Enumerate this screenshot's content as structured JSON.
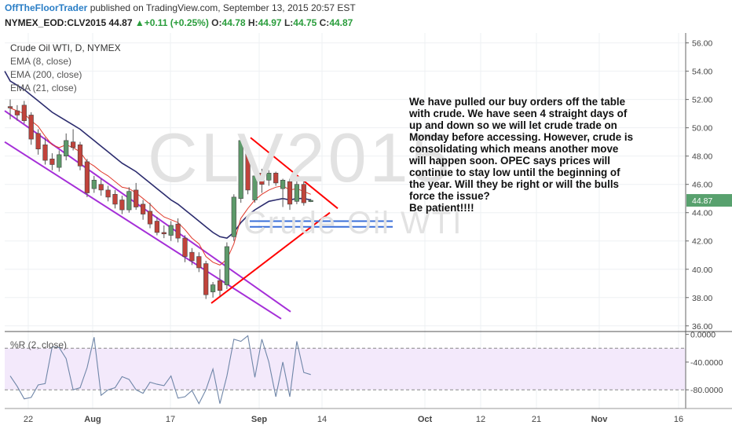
{
  "header": {
    "brand": "OffTheFloorTrader",
    "published": "published on TradingView.com, September 13, 2015 20:57 EST",
    "symbol": "NYMEX_EOD:CLV2015",
    "last": "44.87",
    "change_arrow": "▲",
    "change": "+0.11 (+0.25%)",
    "open_label": "O:",
    "open": "44.78",
    "high_label": "H:",
    "high": "44.97",
    "low_label": "L:",
    "low": "44.75",
    "close_label": "C:",
    "close": "44.87"
  },
  "legend": {
    "symbol_line": "Crude Oil WTI, D, NYMEX",
    "ema_fast": "EMA (8, close)",
    "ema_slow": "EMA (200, close)",
    "ema_mid": "EMA (21, close)"
  },
  "watermark": {
    "ticker": "CLV2015",
    "name": "Crude Oil WTI"
  },
  "note": "We have pulled our buy orders off the table with crude.  We have seen 4 straight days of up and down so we will let crude trade on Monday before accessing.  However,  crude is consolidating which means another move will happen soon.  OPEC says prices will continue to stay low until the beginning of the year.  Will they be right or will the bulls force the issue?\nBe patient!!!!",
  "price_tag": "44.87",
  "oscillator": {
    "label": "%R (2, close)"
  },
  "colors": {
    "up": "#5d9a6a",
    "down": "#c1433b",
    "ema_fast": "#e0392b",
    "ema_21": "#2c2c6e",
    "channel": "#a52fd8",
    "triangle": "#ff0000",
    "support": "#3a6fd8",
    "osc_line": "#6f86a8",
    "osc_band": "#f3e9fb",
    "price_tag": "#58a16e"
  },
  "chart_data": [
    {
      "type": "candlestick",
      "title": "Crude Oil WTI, D, NYMEX",
      "x_ticks": [
        "22",
        "Aug",
        "17",
        "Sep",
        "14",
        "Oct",
        "12",
        "21",
        "Nov",
        "16"
      ],
      "y_ticks": [
        "36.00",
        "38.00",
        "40.00",
        "42.00",
        "44.00",
        "46.00",
        "48.00",
        "50.00",
        "52.00",
        "54.00",
        "56.00"
      ],
      "ylim": [
        35.6,
        56.7
      ],
      "candles": [
        {
          "o": 51.5,
          "h": 52.0,
          "l": 50.6,
          "c": 51.4
        },
        {
          "o": 51.2,
          "h": 51.6,
          "l": 50.5,
          "c": 50.9
        },
        {
          "o": 51.6,
          "h": 51.9,
          "l": 50.3,
          "c": 50.5
        },
        {
          "o": 50.9,
          "h": 51.1,
          "l": 48.8,
          "c": 49.2
        },
        {
          "o": 49.6,
          "h": 49.9,
          "l": 48.1,
          "c": 48.5
        },
        {
          "o": 48.8,
          "h": 49.3,
          "l": 47.4,
          "c": 47.7
        },
        {
          "o": 47.8,
          "h": 48.2,
          "l": 47.0,
          "c": 47.4
        },
        {
          "o": 47.2,
          "h": 48.4,
          "l": 46.9,
          "c": 48.1
        },
        {
          "o": 48.0,
          "h": 49.6,
          "l": 47.7,
          "c": 49.1
        },
        {
          "o": 49.0,
          "h": 49.9,
          "l": 48.4,
          "c": 48.6
        },
        {
          "o": 48.8,
          "h": 49.0,
          "l": 47.0,
          "c": 47.3
        },
        {
          "o": 47.6,
          "h": 47.8,
          "l": 45.1,
          "c": 45.4
        },
        {
          "o": 45.7,
          "h": 46.6,
          "l": 45.4,
          "c": 46.3
        },
        {
          "o": 46.0,
          "h": 46.4,
          "l": 45.2,
          "c": 45.6
        },
        {
          "o": 45.6,
          "h": 45.9,
          "l": 44.8,
          "c": 45.1
        },
        {
          "o": 45.3,
          "h": 45.6,
          "l": 44.3,
          "c": 44.6
        },
        {
          "o": 44.9,
          "h": 45.2,
          "l": 43.9,
          "c": 44.2
        },
        {
          "o": 44.2,
          "h": 45.8,
          "l": 44.0,
          "c": 45.5
        },
        {
          "o": 45.6,
          "h": 46.1,
          "l": 44.2,
          "c": 44.4
        },
        {
          "o": 44.6,
          "h": 44.9,
          "l": 43.5,
          "c": 43.9
        },
        {
          "o": 44.1,
          "h": 44.7,
          "l": 42.9,
          "c": 43.2
        },
        {
          "o": 43.4,
          "h": 43.7,
          "l": 42.4,
          "c": 42.6
        },
        {
          "o": 42.6,
          "h": 43.1,
          "l": 42.2,
          "c": 42.5
        },
        {
          "o": 42.4,
          "h": 43.4,
          "l": 42.0,
          "c": 43.1
        },
        {
          "o": 43.2,
          "h": 43.6,
          "l": 41.9,
          "c": 42.2
        },
        {
          "o": 42.2,
          "h": 42.4,
          "l": 40.5,
          "c": 40.9
        },
        {
          "o": 41.2,
          "h": 41.5,
          "l": 40.3,
          "c": 40.6
        },
        {
          "o": 40.9,
          "h": 41.2,
          "l": 39.8,
          "c": 40.1
        },
        {
          "o": 40.4,
          "h": 40.6,
          "l": 37.9,
          "c": 38.2
        },
        {
          "o": 38.4,
          "h": 39.1,
          "l": 38.0,
          "c": 38.9
        },
        {
          "o": 39.2,
          "h": 40.0,
          "l": 38.1,
          "c": 38.5
        },
        {
          "o": 38.9,
          "h": 41.9,
          "l": 38.6,
          "c": 41.6
        },
        {
          "o": 42.3,
          "h": 45.3,
          "l": 42.0,
          "c": 45.1
        },
        {
          "o": 45.0,
          "h": 49.4,
          "l": 44.7,
          "c": 49.1
        },
        {
          "o": 48.2,
          "h": 48.7,
          "l": 45.3,
          "c": 45.6
        },
        {
          "o": 44.9,
          "h": 47.0,
          "l": 44.7,
          "c": 46.6
        },
        {
          "o": 46.8,
          "h": 47.1,
          "l": 45.4,
          "c": 46.0
        },
        {
          "o": 46.3,
          "h": 47.0,
          "l": 45.9,
          "c": 46.8
        },
        {
          "o": 46.8,
          "h": 46.9,
          "l": 45.9,
          "c": 46.1
        },
        {
          "o": 45.7,
          "h": 46.4,
          "l": 44.4,
          "c": 46.3
        },
        {
          "o": 46.2,
          "h": 46.4,
          "l": 44.2,
          "c": 44.6
        },
        {
          "o": 44.8,
          "h": 46.4,
          "l": 44.6,
          "c": 46.0
        },
        {
          "o": 46.0,
          "h": 46.2,
          "l": 44.5,
          "c": 44.7
        },
        {
          "o": 44.78,
          "h": 44.97,
          "l": 44.75,
          "c": 44.87
        }
      ],
      "ema_8": [
        51.4,
        51.2,
        51.0,
        50.5,
        50.1,
        49.4,
        48.8,
        48.6,
        48.8,
        48.6,
        48.3,
        47.6,
        47.3,
        46.9,
        46.6,
        46.2,
        45.8,
        45.7,
        45.4,
        45.0,
        44.6,
        44.1,
        43.7,
        43.5,
        43.3,
        42.8,
        42.2,
        41.8,
        40.9,
        40.5,
        40.3,
        40.7,
        41.8,
        43.6,
        44.3,
        44.9,
        45.3,
        45.6,
        45.8,
        45.9,
        45.6,
        45.7,
        45.5,
        45.3
      ],
      "ema_21": [
        53.3,
        53.0,
        52.7,
        52.3,
        51.9,
        51.5,
        51.1,
        50.8,
        50.5,
        50.2,
        49.9,
        49.5,
        49.1,
        48.7,
        48.3,
        47.9,
        47.5,
        47.2,
        46.9,
        46.5,
        46.1,
        45.7,
        45.3,
        44.9,
        44.6,
        44.2,
        43.8,
        43.4,
        43.0,
        42.6,
        42.3,
        42.2,
        42.6,
        43.3,
        43.8,
        44.2,
        44.5,
        44.8,
        44.9,
        45.0,
        44.9,
        45.0,
        45.0,
        44.9
      ],
      "support_levels": [
        43.4,
        43.0
      ],
      "channel_upper": [
        [
          51.2,
          37.0
        ]
      ],
      "channel_lower": [
        [
          49.0,
          36.5
        ]
      ],
      "triangle": {
        "top": [
          49.3,
          44.3
        ],
        "bottom": [
          37.6,
          44.0
        ]
      }
    },
    {
      "type": "line",
      "title": "%R (2, close)",
      "y_ticks": [
        "0.0000",
        "-40.0000",
        "-80.0000"
      ],
      "ylim": [
        -107,
        3
      ],
      "levels": [
        -20,
        -80
      ],
      "values": [
        -60,
        -75,
        -93,
        -91,
        -73,
        -71,
        -18,
        -19,
        -35,
        -80,
        -77,
        -48,
        -4,
        -88,
        -80,
        -77,
        -61,
        -65,
        -80,
        -85,
        -69,
        -72,
        -74,
        -60,
        -92,
        -90,
        -81,
        -100,
        -80,
        -50,
        -100,
        -60,
        -7,
        -10,
        -2,
        -62,
        -7,
        -40,
        -90,
        -40,
        -90,
        -10,
        -55,
        -58
      ]
    }
  ]
}
